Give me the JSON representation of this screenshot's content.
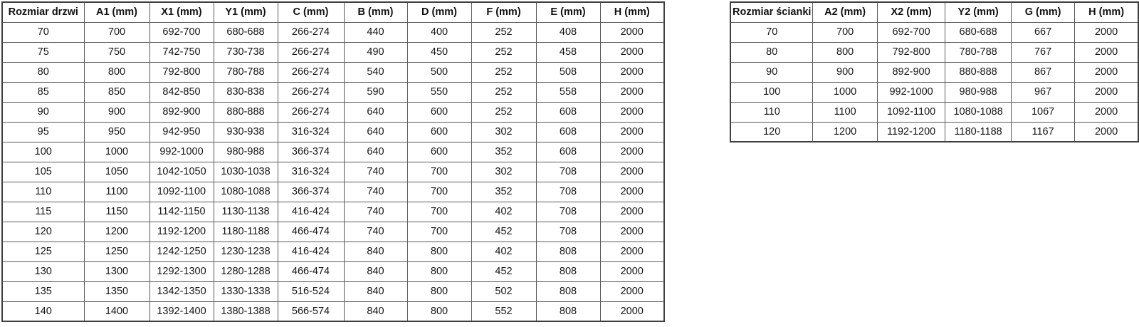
{
  "colors": {
    "background": "#ffffff",
    "text": "#161616",
    "border_inner": "#5a5a5a",
    "border_outer": "#3f3f3f"
  },
  "tables": [
    {
      "name": "door-size-table",
      "headers": [
        "Rozmiar drzwi",
        "A1 (mm)",
        "X1 (mm)",
        "Y1 (mm)",
        "C (mm)",
        "B (mm)",
        "D (mm)",
        "F (mm)",
        "E (mm)",
        "H (mm)"
      ],
      "rows": [
        [
          "70",
          "700",
          "692-700",
          "680-688",
          "266-274",
          "440",
          "400",
          "252",
          "408",
          "2000"
        ],
        [
          "75",
          "750",
          "742-750",
          "730-738",
          "266-274",
          "490",
          "450",
          "252",
          "458",
          "2000"
        ],
        [
          "80",
          "800",
          "792-800",
          "780-788",
          "266-274",
          "540",
          "500",
          "252",
          "508",
          "2000"
        ],
        [
          "85",
          "850",
          "842-850",
          "830-838",
          "266-274",
          "590",
          "550",
          "252",
          "558",
          "2000"
        ],
        [
          "90",
          "900",
          "892-900",
          "880-888",
          "266-274",
          "640",
          "600",
          "252",
          "608",
          "2000"
        ],
        [
          "95",
          "950",
          "942-950",
          "930-938",
          "316-324",
          "640",
          "600",
          "302",
          "608",
          "2000"
        ],
        [
          "100",
          "1000",
          "992-1000",
          "980-988",
          "366-374",
          "640",
          "600",
          "352",
          "608",
          "2000"
        ],
        [
          "105",
          "1050",
          "1042-1050",
          "1030-1038",
          "316-324",
          "740",
          "700",
          "302",
          "708",
          "2000"
        ],
        [
          "110",
          "1100",
          "1092-1100",
          "1080-1088",
          "366-374",
          "740",
          "700",
          "352",
          "708",
          "2000"
        ],
        [
          "115",
          "1150",
          "1142-1150",
          "1130-1138",
          "416-424",
          "740",
          "700",
          "402",
          "708",
          "2000"
        ],
        [
          "120",
          "1200",
          "1192-1200",
          "1180-1188",
          "466-474",
          "740",
          "700",
          "452",
          "708",
          "2000"
        ],
        [
          "125",
          "1250",
          "1242-1250",
          "1230-1238",
          "416-424",
          "840",
          "800",
          "402",
          "808",
          "2000"
        ],
        [
          "130",
          "1300",
          "1292-1300",
          "1280-1288",
          "466-474",
          "840",
          "800",
          "452",
          "808",
          "2000"
        ],
        [
          "135",
          "1350",
          "1342-1350",
          "1330-1338",
          "516-524",
          "840",
          "800",
          "502",
          "808",
          "2000"
        ],
        [
          "140",
          "1400",
          "1392-1400",
          "1380-1388",
          "566-574",
          "840",
          "800",
          "552",
          "808",
          "2000"
        ]
      ]
    },
    {
      "name": "wall-size-table",
      "headers": [
        "Rozmiar ścianki",
        "A2 (mm)",
        "X2 (mm)",
        "Y2 (mm)",
        "G (mm)",
        "H (mm)"
      ],
      "rows": [
        [
          "70",
          "700",
          "692-700",
          "680-688",
          "667",
          "2000"
        ],
        [
          "80",
          "800",
          "792-800",
          "780-788",
          "767",
          "2000"
        ],
        [
          "90",
          "900",
          "892-900",
          "880-888",
          "867",
          "2000"
        ],
        [
          "100",
          "1000",
          "992-1000",
          "980-988",
          "967",
          "2000"
        ],
        [
          "110",
          "1100",
          "1092-1100",
          "1080-1088",
          "1067",
          "2000"
        ],
        [
          "120",
          "1200",
          "1192-1200",
          "1180-1188",
          "1167",
          "2000"
        ]
      ]
    }
  ]
}
